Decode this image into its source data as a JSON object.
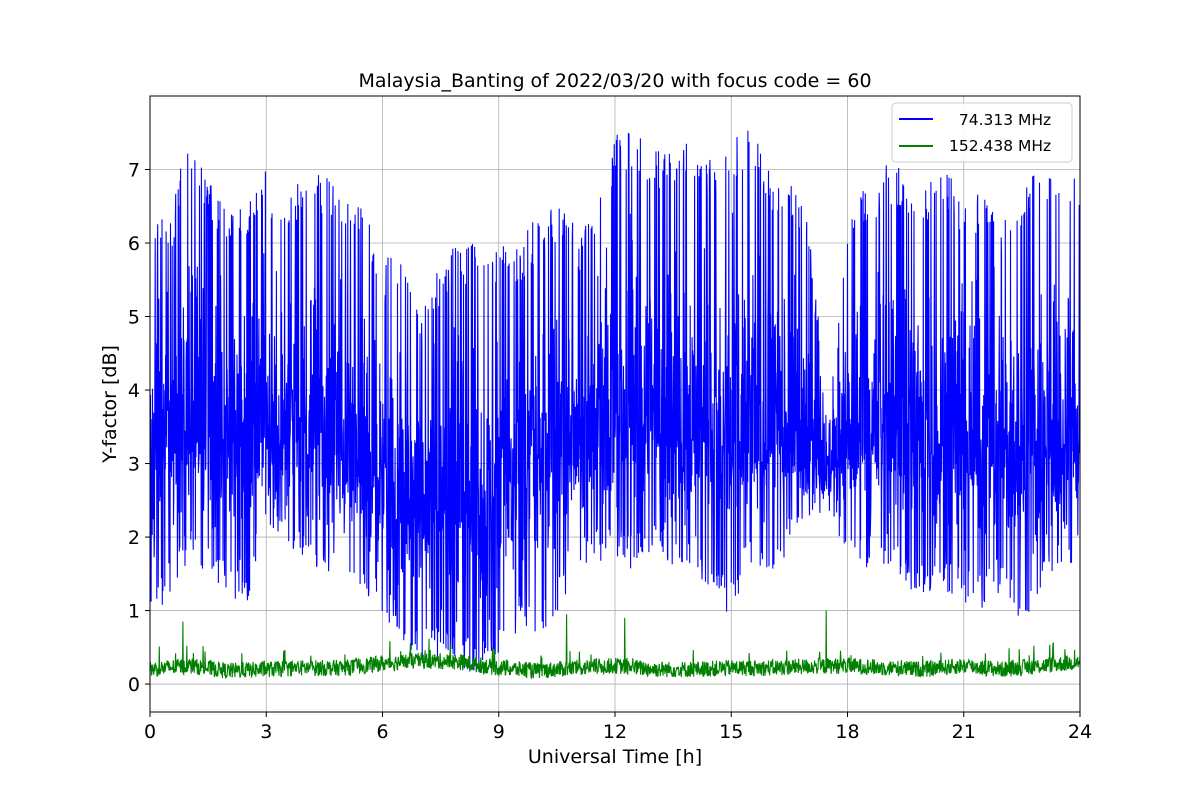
{
  "chart_data": {
    "type": "line",
    "title": "Malaysia_Banting of 2022/03/20 with focus code = 60",
    "xlabel": "Universal Time [h]",
    "ylabel": "Y-factor [dB]",
    "xlim": [
      0,
      24
    ],
    "ylim": [
      -0.38,
      8.0
    ],
    "xticks": [
      "0",
      "3",
      "6",
      "9",
      "12",
      "15",
      "18",
      "21",
      "24"
    ],
    "yticks": [
      "0",
      "1",
      "2",
      "3",
      "4",
      "5",
      "6",
      "7"
    ],
    "grid": true,
    "legend_position": "top-right",
    "series": [
      {
        "name": "74.313 MHz",
        "legend_label": "  74.313 MHz",
        "color": "#0000ff",
        "envelope": {
          "x": [
            0,
            0.5,
            1,
            1.5,
            2,
            2.5,
            3,
            3.5,
            4,
            4.5,
            5,
            5.5,
            6,
            6.5,
            7,
            7.5,
            8,
            8.5,
            9,
            9.5,
            10,
            10.5,
            11,
            11.5,
            12,
            12.5,
            13,
            13.5,
            14,
            14.5,
            15,
            15.5,
            16,
            16.5,
            17,
            17.5,
            18,
            18.5,
            19,
            19.5,
            20,
            20.5,
            21,
            21.5,
            22,
            22.5,
            23,
            23.5,
            24
          ],
          "upper": [
            6.4,
            6.4,
            7.5,
            6.9,
            6.4,
            6.6,
            7.0,
            6.5,
            7.1,
            6.9,
            6.8,
            6.6,
            5.7,
            6.1,
            5.0,
            5.8,
            6.0,
            6.1,
            6.0,
            6.0,
            6.4,
            6.6,
            6.2,
            6.4,
            7.5,
            7.6,
            7.3,
            7.4,
            7.5,
            7.1,
            7.4,
            7.6,
            7.0,
            6.9,
            6.4,
            3.9,
            6.4,
            6.8,
            7.1,
            7.0,
            6.9,
            7.0,
            6.7,
            6.7,
            6.4,
            6.7,
            7.1,
            7.1,
            6.9
          ],
          "lower": [
            0.7,
            1.2,
            1.7,
            1.5,
            1.1,
            1.1,
            2.2,
            1.8,
            1.6,
            1.4,
            1.2,
            1.0,
            0.9,
            0.5,
            0.3,
            0.3,
            0.2,
            0.1,
            0.3,
            0.7,
            0.6,
            0.9,
            1.6,
            1.6,
            1.7,
            1.5,
            1.8,
            1.4,
            1.6,
            1.2,
            0.9,
            1.6,
            1.5,
            1.8,
            2.2,
            2.4,
            1.7,
            1.5,
            1.6,
            1.3,
            1.1,
            1.2,
            1.1,
            1.0,
            1.3,
            0.6,
            1.2,
            1.5,
            1.6
          ],
          "mean": [
            3.2,
            3.3,
            3.6,
            3.4,
            3.3,
            3.3,
            3.5,
            3.4,
            3.4,
            3.3,
            3.1,
            2.9,
            2.8,
            2.6,
            2.3,
            2.4,
            2.5,
            2.4,
            2.6,
            2.9,
            3.0,
            3.1,
            3.3,
            3.4,
            3.6,
            3.7,
            3.6,
            3.5,
            3.5,
            3.4,
            3.3,
            3.4,
            3.3,
            3.2,
            3.1,
            3.0,
            3.2,
            3.4,
            3.5,
            3.5,
            3.4,
            3.4,
            3.2,
            3.1,
            3.2,
            3.1,
            3.3,
            3.4,
            3.4
          ]
        }
      },
      {
        "name": "152.438 MHz",
        "legend_label": "152.438 MHz",
        "color": "#008000",
        "envelope": {
          "x": [
            0,
            1,
            2,
            3,
            4,
            5,
            6,
            7,
            8,
            9,
            10,
            11,
            12,
            13,
            14,
            15,
            16,
            17,
            18,
            19,
            20,
            21,
            22,
            23,
            24
          ],
          "mean": [
            0.2,
            0.25,
            0.18,
            0.2,
            0.22,
            0.22,
            0.28,
            0.32,
            0.3,
            0.22,
            0.18,
            0.22,
            0.25,
            0.2,
            0.2,
            0.22,
            0.22,
            0.24,
            0.25,
            0.22,
            0.2,
            0.25,
            0.2,
            0.25,
            0.3
          ],
          "spikes": [
            {
              "x": 0.85,
              "y": 0.85
            },
            {
              "x": 10.75,
              "y": 0.95
            },
            {
              "x": 12.25,
              "y": 0.9
            },
            {
              "x": 17.45,
              "y": 1.0
            },
            {
              "x": 23.3,
              "y": 0.55
            }
          ]
        }
      }
    ]
  }
}
